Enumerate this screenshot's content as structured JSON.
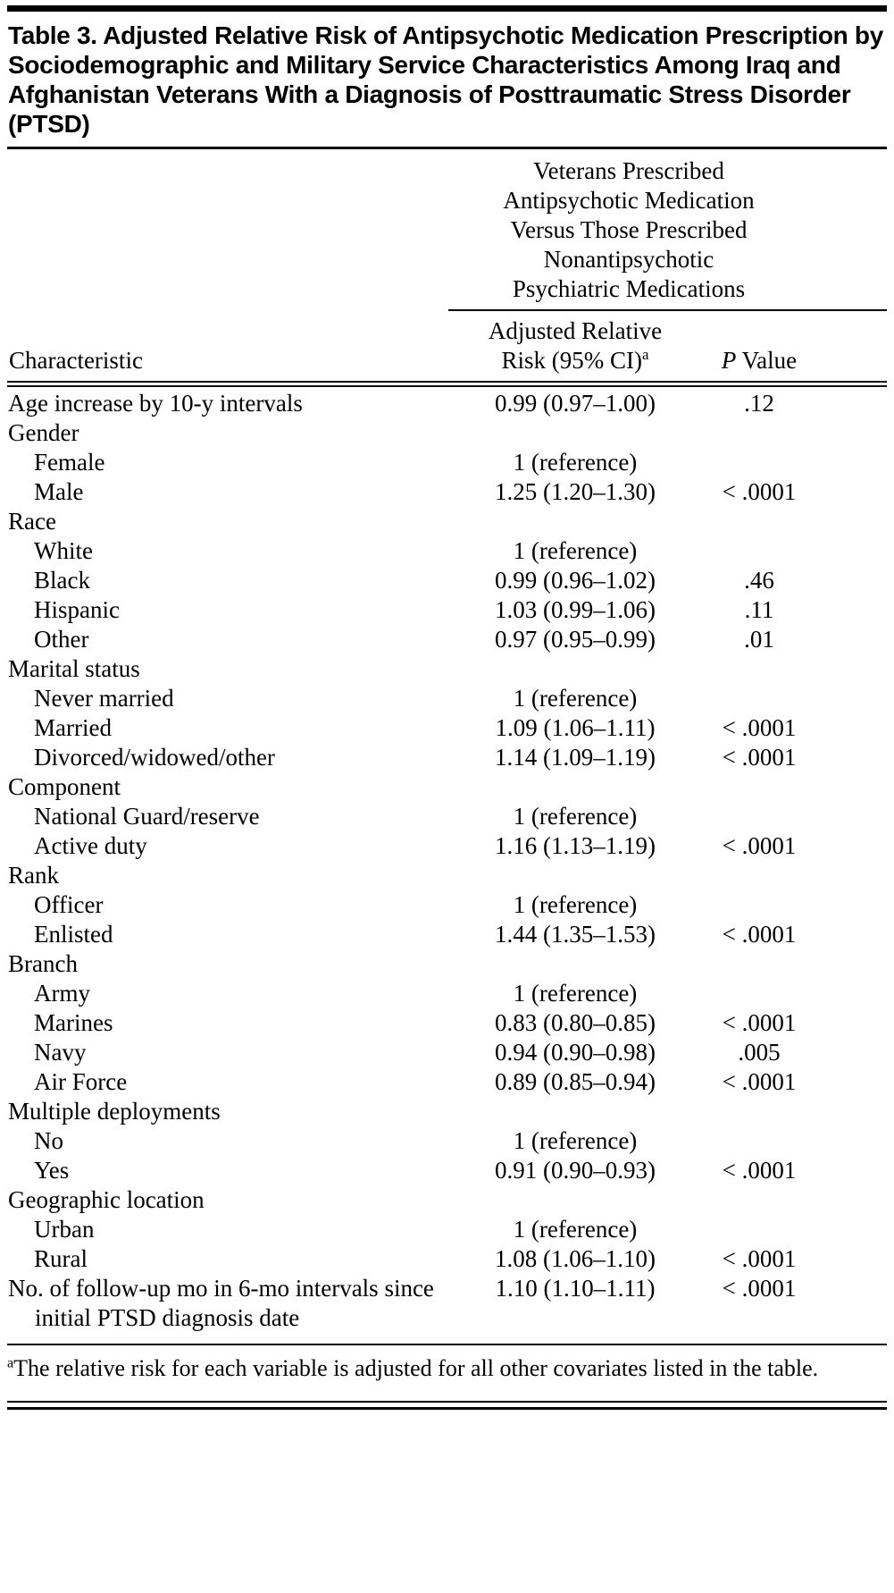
{
  "page": {
    "background": "#ffffff",
    "text_color": "#000000"
  },
  "title": "Table 3. Adjusted Relative Risk of Antipsychotic Medication Prescription by Sociodemographic and Military Service Characteristics Among Iraq and Afghanistan Veterans With a Diagnosis of Posttraumatic Stress Disorder (PTSD)",
  "table": {
    "span_header_lines": [
      "Veterans Prescribed",
      "Antipsychotic Medication",
      "Versus Those Prescribed",
      "Nonantipsychotic",
      "Psychiatric Medications"
    ],
    "columns": {
      "characteristic": "Characteristic",
      "risk_line1": "Adjusted Relative",
      "risk_line2": "Risk (95% CI)",
      "risk_footnote_marker": "a",
      "p_italic": "P",
      "p_rest": " Value"
    },
    "rows": [
      {
        "label": "Age increase by 10-y intervals",
        "indent": 0,
        "risk": "0.99 (0.97–1.00)",
        "p": ".12"
      },
      {
        "label": "Gender",
        "indent": 0,
        "risk": "",
        "p": ""
      },
      {
        "label": "Female",
        "indent": 1,
        "risk": "1 (reference)",
        "p": ""
      },
      {
        "label": "Male",
        "indent": 1,
        "risk": "1.25 (1.20–1.30)",
        "p": "< .0001"
      },
      {
        "label": "Race",
        "indent": 0,
        "risk": "",
        "p": ""
      },
      {
        "label": "White",
        "indent": 1,
        "risk": "1 (reference)",
        "p": ""
      },
      {
        "label": "Black",
        "indent": 1,
        "risk": "0.99 (0.96–1.02)",
        "p": ".46"
      },
      {
        "label": "Hispanic",
        "indent": 1,
        "risk": "1.03 (0.99–1.06)",
        "p": ".11"
      },
      {
        "label": "Other",
        "indent": 1,
        "risk": "0.97 (0.95–0.99)",
        "p": ".01"
      },
      {
        "label": "Marital status",
        "indent": 0,
        "risk": "",
        "p": ""
      },
      {
        "label": "Never married",
        "indent": 1,
        "risk": "1 (reference)",
        "p": ""
      },
      {
        "label": "Married",
        "indent": 1,
        "risk": "1.09 (1.06–1.11)",
        "p": "< .0001"
      },
      {
        "label": "Divorced/widowed/other",
        "indent": 1,
        "risk": "1.14 (1.09–1.19)",
        "p": "< .0001"
      },
      {
        "label": "Component",
        "indent": 0,
        "risk": "",
        "p": ""
      },
      {
        "label": "National Guard/reserve",
        "indent": 1,
        "risk": "1 (reference)",
        "p": ""
      },
      {
        "label": "Active duty",
        "indent": 1,
        "risk": "1.16 (1.13–1.19)",
        "p": "< .0001"
      },
      {
        "label": "Rank",
        "indent": 0,
        "risk": "",
        "p": ""
      },
      {
        "label": "Officer",
        "indent": 1,
        "risk": "1 (reference)",
        "p": ""
      },
      {
        "label": "Enlisted",
        "indent": 1,
        "risk": "1.44 (1.35–1.53)",
        "p": "< .0001"
      },
      {
        "label": "Branch",
        "indent": 0,
        "risk": "",
        "p": ""
      },
      {
        "label": "Army",
        "indent": 1,
        "risk": "1 (reference)",
        "p": ""
      },
      {
        "label": "Marines",
        "indent": 1,
        "risk": "0.83 (0.80–0.85)",
        "p": "< .0001"
      },
      {
        "label": "Navy",
        "indent": 1,
        "risk": "0.94 (0.90–0.98)",
        "p": ".005"
      },
      {
        "label": "Air Force",
        "indent": 1,
        "risk": "0.89 (0.85–0.94)",
        "p": "< .0001"
      },
      {
        "label": "Multiple deployments",
        "indent": 0,
        "risk": "",
        "p": ""
      },
      {
        "label": "No",
        "indent": 1,
        "risk": "1 (reference)",
        "p": ""
      },
      {
        "label": "Yes",
        "indent": 1,
        "risk": "0.91 (0.90–0.93)",
        "p": "< .0001"
      },
      {
        "label": "Geographic location",
        "indent": 0,
        "risk": "",
        "p": ""
      },
      {
        "label": "Urban",
        "indent": 1,
        "risk": "1 (reference)",
        "p": ""
      },
      {
        "label": "Rural",
        "indent": 1,
        "risk": "1.08 (1.06–1.10)",
        "p": "< .0001"
      },
      {
        "label": "No. of follow-up mo in 6-mo intervals since initial PTSD diagnosis date",
        "indent": 0,
        "risk": "1.10 (1.10–1.11)",
        "p": "< .0001"
      }
    ]
  },
  "footnote": {
    "marker": "a",
    "text": "The relative risk for each variable is adjusted for all other covariates listed in the table."
  }
}
